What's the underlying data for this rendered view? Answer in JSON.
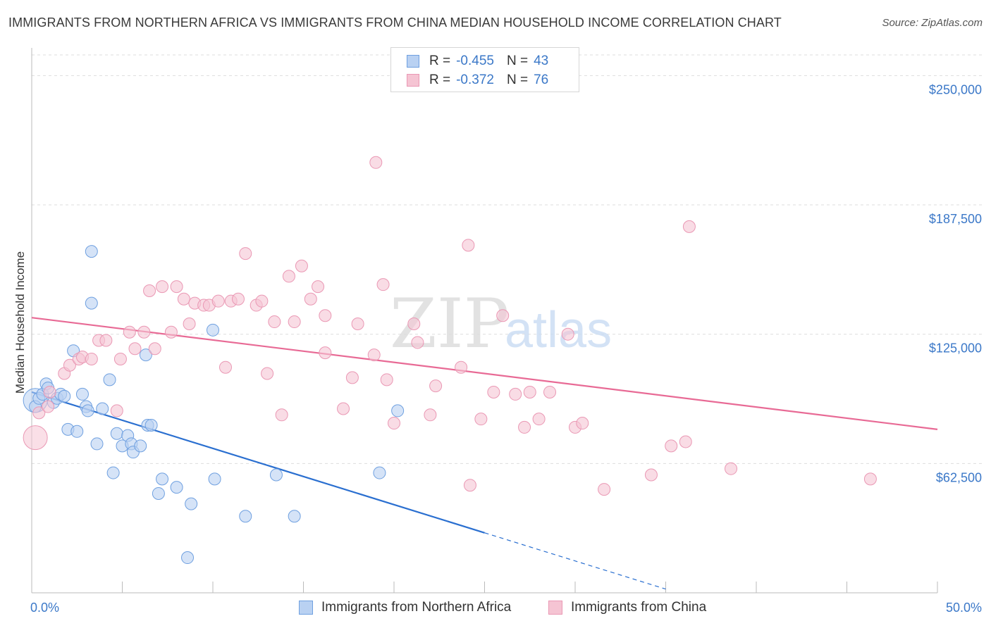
{
  "header": {
    "title": "IMMIGRANTS FROM NORTHERN AFRICA VS IMMIGRANTS FROM CHINA MEDIAN HOUSEHOLD INCOME CORRELATION CHART",
    "source": "Source: ZipAtlas.com"
  },
  "watermark": {
    "zip": "ZIP",
    "atlas": "atlas"
  },
  "colors": {
    "blue": "#3b78c8",
    "blue_fill": "#b9d1f2",
    "blue_line": "#2a6fd0",
    "pink_fill": "#f5c4d3",
    "pink_line": "#e86a95",
    "grid": "#dddddd"
  },
  "legend": {
    "rows": [
      {
        "r_label": "R =",
        "r_value": "-0.455",
        "n_label": "N =",
        "n_value": "43"
      },
      {
        "r_label": "R =",
        "r_value": "-0.372",
        "n_label": "N =",
        "n_value": "76"
      }
    ]
  },
  "bottom_legend": {
    "items": [
      {
        "label": "Immigrants from Northern Africa"
      },
      {
        "label": "Immigrants from China"
      }
    ]
  },
  "chart_data": {
    "type": "scatter",
    "title": "IMMIGRANTS FROM NORTHERN AFRICA VS IMMIGRANTS FROM CHINA MEDIAN HOUSEHOLD INCOME CORRELATION CHART",
    "ylabel": "Median Household Income",
    "xlabel": "",
    "xlim": [
      0,
      50
    ],
    "ylim": [
      0,
      260000
    ],
    "x_tick_labels": [
      "0.0%",
      "50.0%"
    ],
    "y_ticks": [
      62500,
      125000,
      187500,
      250000
    ],
    "y_tick_labels": [
      "$62,500",
      "$125,000",
      "$187,500",
      "$250,000"
    ],
    "grid": true,
    "legend_position": "top-center",
    "series": [
      {
        "name": "Immigrants from Northern Africa",
        "color": "#b9d1f2",
        "stroke": "#6fa0e0",
        "r": -0.455,
        "n": 43,
        "trend": {
          "x0": 0,
          "y0": 97000,
          "x1": 25,
          "y1": 29000,
          "dash_to_x": 35
        },
        "points": [
          [
            0.2,
            90000
          ],
          [
            0.4,
            94000
          ],
          [
            0.6,
            96000
          ],
          [
            0.8,
            101000
          ],
          [
            0.9,
            99000
          ],
          [
            1.2,
            92000
          ],
          [
            1.4,
            94000
          ],
          [
            1.6,
            96000
          ],
          [
            1.8,
            95000
          ],
          [
            2.0,
            79000
          ],
          [
            2.3,
            117000
          ],
          [
            2.5,
            78000
          ],
          [
            2.8,
            96000
          ],
          [
            3.0,
            90000
          ],
          [
            3.1,
            88000
          ],
          [
            3.3,
            165000
          ],
          [
            3.3,
            140000
          ],
          [
            3.6,
            72000
          ],
          [
            3.9,
            89000
          ],
          [
            4.3,
            103000
          ],
          [
            4.5,
            58000
          ],
          [
            4.7,
            77000
          ],
          [
            5.0,
            71000
          ],
          [
            5.3,
            76000
          ],
          [
            5.5,
            72000
          ],
          [
            5.6,
            68000
          ],
          [
            6.0,
            71000
          ],
          [
            6.3,
            115000
          ],
          [
            6.4,
            81000
          ],
          [
            6.6,
            81000
          ],
          [
            7.0,
            48000
          ],
          [
            7.2,
            55000
          ],
          [
            8.0,
            51000
          ],
          [
            8.6,
            17000
          ],
          [
            8.8,
            43000
          ],
          [
            10.0,
            127000
          ],
          [
            10.1,
            55000
          ],
          [
            11.8,
            37000
          ],
          [
            13.5,
            57000
          ],
          [
            14.5,
            37000
          ],
          [
            19.2,
            58000
          ],
          [
            20.2,
            88000
          ]
        ],
        "large_points": [
          [
            0.2,
            93000
          ]
        ]
      },
      {
        "name": "Immigrants from China",
        "color": "#f5c4d3",
        "stroke": "#ea98b4",
        "r": -0.372,
        "n": 76,
        "trend": {
          "x0": 0,
          "y0": 133000,
          "x1": 50,
          "y1": 79000
        },
        "points": [
          [
            0.4,
            87000
          ],
          [
            0.9,
            90000
          ],
          [
            1.0,
            97000
          ],
          [
            1.8,
            106000
          ],
          [
            2.1,
            110000
          ],
          [
            2.6,
            113000
          ],
          [
            2.8,
            114000
          ],
          [
            3.3,
            113000
          ],
          [
            3.7,
            122000
          ],
          [
            4.1,
            122000
          ],
          [
            4.7,
            88000
          ],
          [
            4.9,
            113000
          ],
          [
            5.4,
            126000
          ],
          [
            5.7,
            118000
          ],
          [
            6.2,
            126000
          ],
          [
            6.5,
            146000
          ],
          [
            6.8,
            118000
          ],
          [
            7.2,
            148000
          ],
          [
            7.7,
            126000
          ],
          [
            8.0,
            148000
          ],
          [
            8.4,
            142000
          ],
          [
            8.7,
            130000
          ],
          [
            9.0,
            140000
          ],
          [
            9.5,
            139000
          ],
          [
            9.8,
            139000
          ],
          [
            10.3,
            141000
          ],
          [
            10.7,
            109000
          ],
          [
            11.0,
            141000
          ],
          [
            11.4,
            142000
          ],
          [
            11.8,
            164000
          ],
          [
            12.4,
            139000
          ],
          [
            12.7,
            141000
          ],
          [
            13.0,
            106000
          ],
          [
            13.4,
            131000
          ],
          [
            13.8,
            86000
          ],
          [
            14.2,
            153000
          ],
          [
            14.5,
            131000
          ],
          [
            14.9,
            158000
          ],
          [
            15.4,
            142000
          ],
          [
            15.8,
            148000
          ],
          [
            16.2,
            134000
          ],
          [
            16.2,
            116000
          ],
          [
            17.2,
            89000
          ],
          [
            17.7,
            104000
          ],
          [
            18.0,
            130000
          ],
          [
            18.9,
            115000
          ],
          [
            19.4,
            149000
          ],
          [
            19.6,
            103000
          ],
          [
            20.0,
            82000
          ],
          [
            21.1,
            130000
          ],
          [
            21.3,
            121000
          ],
          [
            22.0,
            86000
          ],
          [
            22.3,
            100000
          ],
          [
            23.7,
            109000
          ],
          [
            24.1,
            168000
          ],
          [
            24.2,
            52000
          ],
          [
            24.8,
            84000
          ],
          [
            25.5,
            97000
          ],
          [
            26.0,
            134000
          ],
          [
            26.7,
            96000
          ],
          [
            27.2,
            80000
          ],
          [
            27.5,
            97000
          ],
          [
            28.0,
            84000
          ],
          [
            28.6,
            97000
          ],
          [
            29.6,
            125000
          ],
          [
            30.0,
            80000
          ],
          [
            30.4,
            82000
          ],
          [
            31.6,
            50000
          ],
          [
            34.2,
            57000
          ],
          [
            35.3,
            71000
          ],
          [
            36.1,
            73000
          ],
          [
            38.6,
            60000
          ],
          [
            46.3,
            55000
          ],
          [
            19.0,
            208000
          ],
          [
            36.3,
            177000
          ]
        ],
        "large_points": [
          [
            0.2,
            75000
          ]
        ]
      }
    ]
  }
}
